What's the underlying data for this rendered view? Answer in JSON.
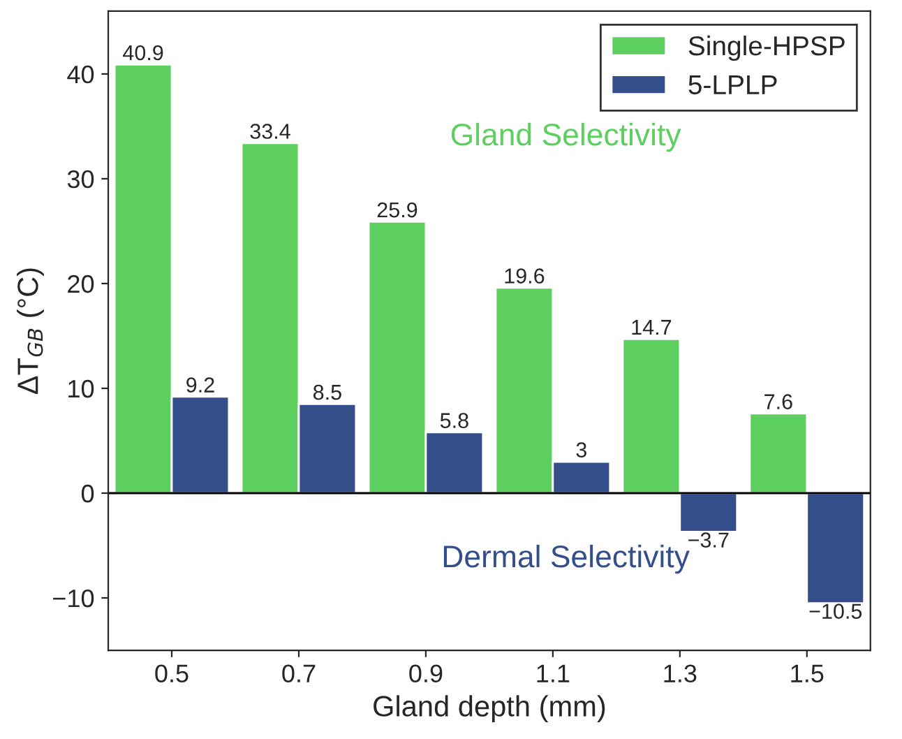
{
  "chart_data": {
    "type": "bar",
    "xlabel": "Gland depth (mm)",
    "ylabel": "ΔT$_{GB}$ (°C)",
    "categories": [
      "0.5",
      "0.7",
      "0.9",
      "1.1",
      "1.3",
      "1.5"
    ],
    "series": [
      {
        "name": "Single-HPSP",
        "color": "#5ccf5f",
        "values": [
          40.9,
          33.4,
          25.9,
          19.6,
          14.7,
          7.6
        ]
      },
      {
        "name": "5-LPLP",
        "color": "#344e8c",
        "values": [
          9.2,
          8.5,
          5.8,
          3,
          -3.7,
          -10.5
        ]
      }
    ],
    "ylim": [
      -15,
      46
    ],
    "yticks": [
      -10,
      0,
      10,
      20,
      30,
      40
    ],
    "ref_lines": [
      {
        "axis": "y",
        "value": 0,
        "color": "#000000"
      }
    ],
    "annotations": [
      "Gland Selectivity",
      "Dermal Selectivity"
    ],
    "data_labels": true,
    "legend": "top right",
    "grid": false
  }
}
